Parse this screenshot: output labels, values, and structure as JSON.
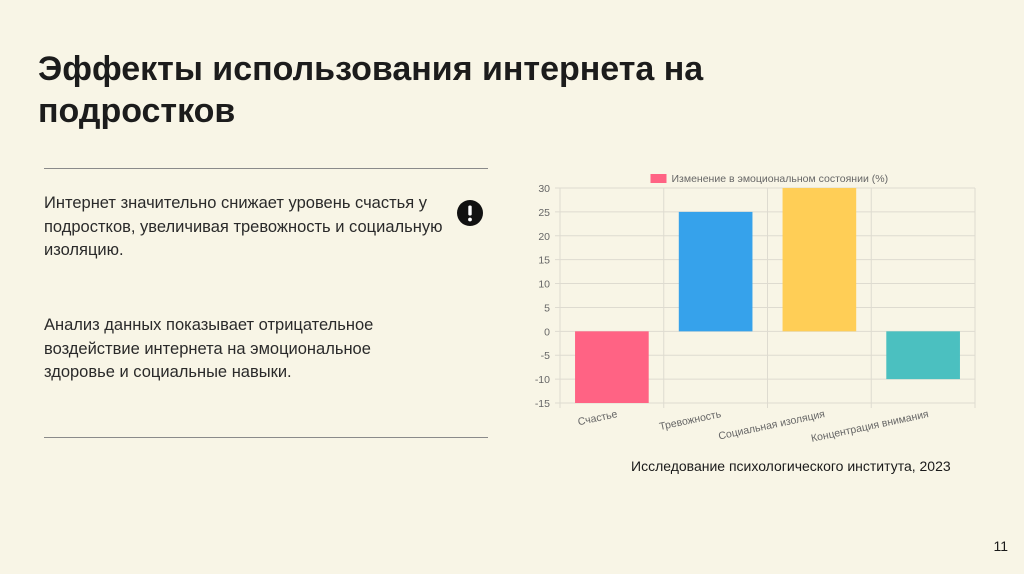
{
  "slide": {
    "title": "Эффекты использования интернета на подростков",
    "paragraphs": [
      "Интернет значительно снижает уровень счастья у подростков, увеличивая тревожность и социальную изоляцию.",
      "Анализ данных показывает отрицательное воздействие интернета на эмоциональное здоровье и социальные навыки."
    ],
    "alert_icon": "exclamation-circle-icon",
    "caption": "Исследование психологического института, 2023",
    "page_number": "11"
  },
  "chart_data": {
    "type": "bar",
    "categories": [
      "Счастье",
      "Тревожность",
      "Социальная изоляция",
      "Концентрация внимания"
    ],
    "series": [
      {
        "name": "Изменение в эмоциональном состоянии (%)",
        "values": [
          -15,
          25,
          30,
          -10
        ]
      }
    ],
    "bar_colors": [
      "#ff6384",
      "#36a2eb",
      "#ffce56",
      "#4bc0c0"
    ],
    "legend_color": "#ff6384",
    "ylim": [
      -15,
      30
    ],
    "yticks": [
      30,
      25,
      20,
      15,
      10,
      5,
      0,
      -5,
      -10,
      -15
    ],
    "grid": true,
    "legend_position": "top"
  }
}
